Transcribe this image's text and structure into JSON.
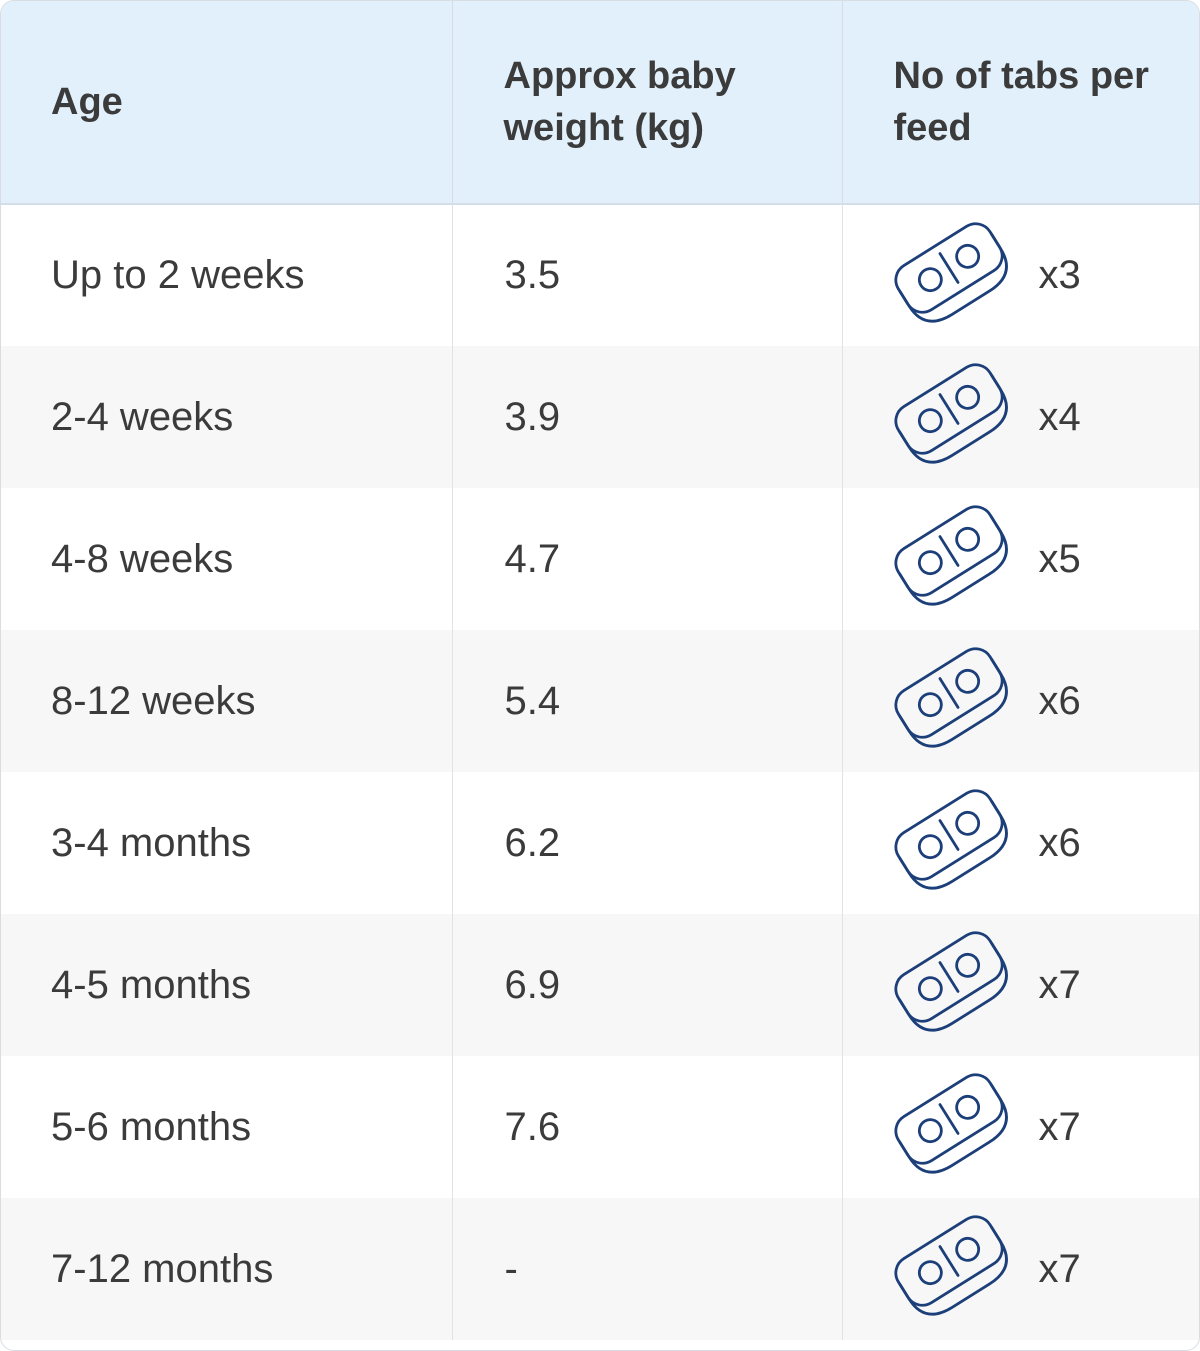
{
  "table": {
    "headers": {
      "age": "Age",
      "weight": "Approx baby weight (kg)",
      "tabs": "No of tabs per feed"
    },
    "rows": [
      {
        "age": "Up to 2 weeks",
        "weight": "3.5",
        "tabs": "x3"
      },
      {
        "age": "2-4 weeks",
        "weight": "3.9",
        "tabs": "x4"
      },
      {
        "age": "4-8 weeks",
        "weight": "4.7",
        "tabs": "x5"
      },
      {
        "age": "8-12 weeks",
        "weight": "5.4",
        "tabs": "x6"
      },
      {
        "age": "3-4 months",
        "weight": "6.2",
        "tabs": "x6"
      },
      {
        "age": "4-5 months",
        "weight": "6.9",
        "tabs": "x7"
      },
      {
        "age": "5-6 months",
        "weight": "7.6",
        "tabs": "x7"
      },
      {
        "age": "7-12 months",
        "weight": "-",
        "tabs": "x7"
      }
    ],
    "icon": "formula-tablet-icon",
    "colors": {
      "header_bg": "#e1f0fb",
      "stripe_bg": "#f7f7f7",
      "text": "#3b3b3b",
      "icon_stroke": "#1c3f7a"
    }
  }
}
